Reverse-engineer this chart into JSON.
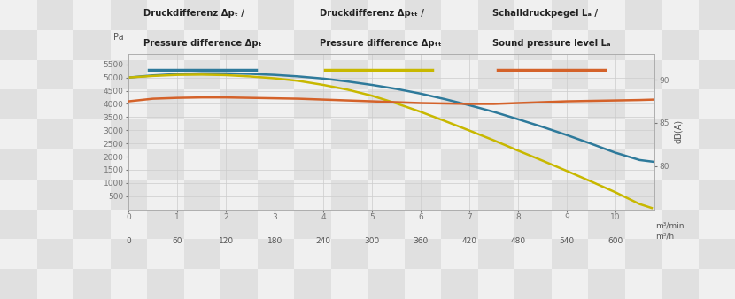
{
  "legend_labels": [
    "Druckdifferenz Δpₜ /\nPressure difference Δpₜ",
    "Druckdifferenz Δpₜₜ /\nPressure difference Δpₜₜ",
    "Schalldruckpegel Lₐ /\nSound pressure level Lₐ"
  ],
  "line_colors": [
    "#2e7a9b",
    "#c8b800",
    "#d4622a"
  ],
  "xlabel_top": "m³/min",
  "xlabel_bottom": "m³/h",
  "ylabel_left": "Pa",
  "ylabel_right": "dB(A)",
  "ylim_left": [
    0,
    5900
  ],
  "ylim_right": [
    75,
    93
  ],
  "yticks_left": [
    500,
    1000,
    1500,
    2000,
    2500,
    3000,
    3500,
    4000,
    4500,
    5000,
    5500
  ],
  "yticks_right": [
    80,
    85,
    90
  ],
  "checker_color1": "#e0e0e0",
  "checker_color2": "#f0f0f0",
  "x_max": 10.8,
  "blue_curve_x": [
    0,
    0.5,
    1.0,
    1.5,
    2.0,
    2.5,
    3.0,
    3.5,
    4.0,
    4.5,
    5.0,
    5.5,
    6.0,
    6.5,
    7.0,
    7.5,
    8.0,
    8.5,
    9.0,
    9.5,
    10.0,
    10.5,
    10.8
  ],
  "blue_curve_y": [
    5000,
    5080,
    5130,
    5160,
    5160,
    5140,
    5100,
    5040,
    4960,
    4850,
    4720,
    4570,
    4390,
    4180,
    3950,
    3700,
    3420,
    3130,
    2820,
    2490,
    2150,
    1870,
    1800
  ],
  "yellow_curve_x": [
    0,
    0.5,
    1.0,
    1.5,
    2.0,
    2.5,
    3.0,
    3.5,
    4.0,
    4.5,
    5.0,
    5.5,
    6.0,
    6.5,
    7.0,
    7.5,
    8.0,
    8.5,
    9.0,
    9.5,
    10.0,
    10.5,
    10.75
  ],
  "yellow_curve_y": [
    5000,
    5060,
    5100,
    5110,
    5090,
    5040,
    4970,
    4870,
    4720,
    4540,
    4310,
    4020,
    3700,
    3350,
    2990,
    2620,
    2230,
    1850,
    1460,
    1060,
    650,
    200,
    50
  ],
  "orange_curve_x": [
    0,
    0.5,
    1.0,
    1.5,
    2.0,
    2.5,
    3.0,
    3.5,
    4.0,
    4.5,
    5.0,
    5.5,
    6.0,
    6.5,
    7.0,
    7.5,
    8.0,
    8.5,
    9.0,
    9.5,
    10.0,
    10.5,
    10.8
  ],
  "orange_curve_dB": [
    87.5,
    87.8,
    87.9,
    87.95,
    87.95,
    87.9,
    87.85,
    87.8,
    87.7,
    87.6,
    87.5,
    87.4,
    87.3,
    87.25,
    87.2,
    87.2,
    87.3,
    87.4,
    87.5,
    87.55,
    87.6,
    87.65,
    87.7
  ]
}
